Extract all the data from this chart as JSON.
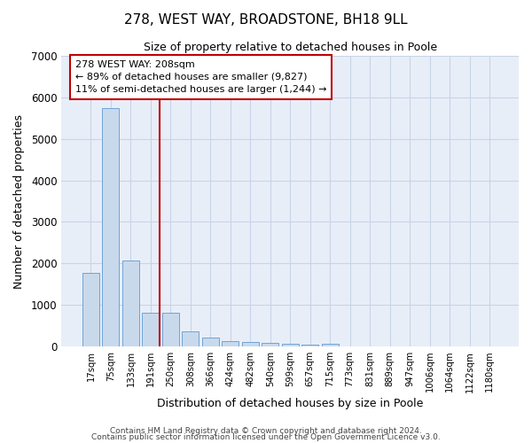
{
  "title": "278, WEST WAY, BROADSTONE, BH18 9LL",
  "subtitle": "Size of property relative to detached houses in Poole",
  "xlabel": "Distribution of detached houses by size in Poole",
  "ylabel": "Number of detached properties",
  "categories": [
    "17sqm",
    "75sqm",
    "133sqm",
    "191sqm",
    "250sqm",
    "308sqm",
    "366sqm",
    "424sqm",
    "482sqm",
    "540sqm",
    "599sqm",
    "657sqm",
    "715sqm",
    "773sqm",
    "831sqm",
    "889sqm",
    "947sqm",
    "1006sqm",
    "1064sqm",
    "1122sqm",
    "1180sqm"
  ],
  "values": [
    1780,
    5750,
    2060,
    820,
    800,
    370,
    215,
    120,
    95,
    80,
    55,
    50,
    55,
    0,
    0,
    0,
    0,
    0,
    0,
    0,
    0
  ],
  "bar_color": "#c9d9ec",
  "bar_edge_color": "#5b9bd5",
  "vline_x_idx": 3,
  "vline_color": "#c00000",
  "annotation_line1": "278 WEST WAY: 208sqm",
  "annotation_line2": "← 89% of detached houses are smaller (9,827)",
  "annotation_line3": "11% of semi-detached houses are larger (1,244) →",
  "annotation_box_color": "#c00000",
  "ylim": [
    0,
    7000
  ],
  "yticks": [
    0,
    1000,
    2000,
    3000,
    4000,
    5000,
    6000,
    7000
  ],
  "grid_color": "#c8d4e8",
  "bg_color": "#e8eef8",
  "footer1": "Contains HM Land Registry data © Crown copyright and database right 2024.",
  "footer2": "Contains public sector information licensed under the Open Government Licence v3.0."
}
